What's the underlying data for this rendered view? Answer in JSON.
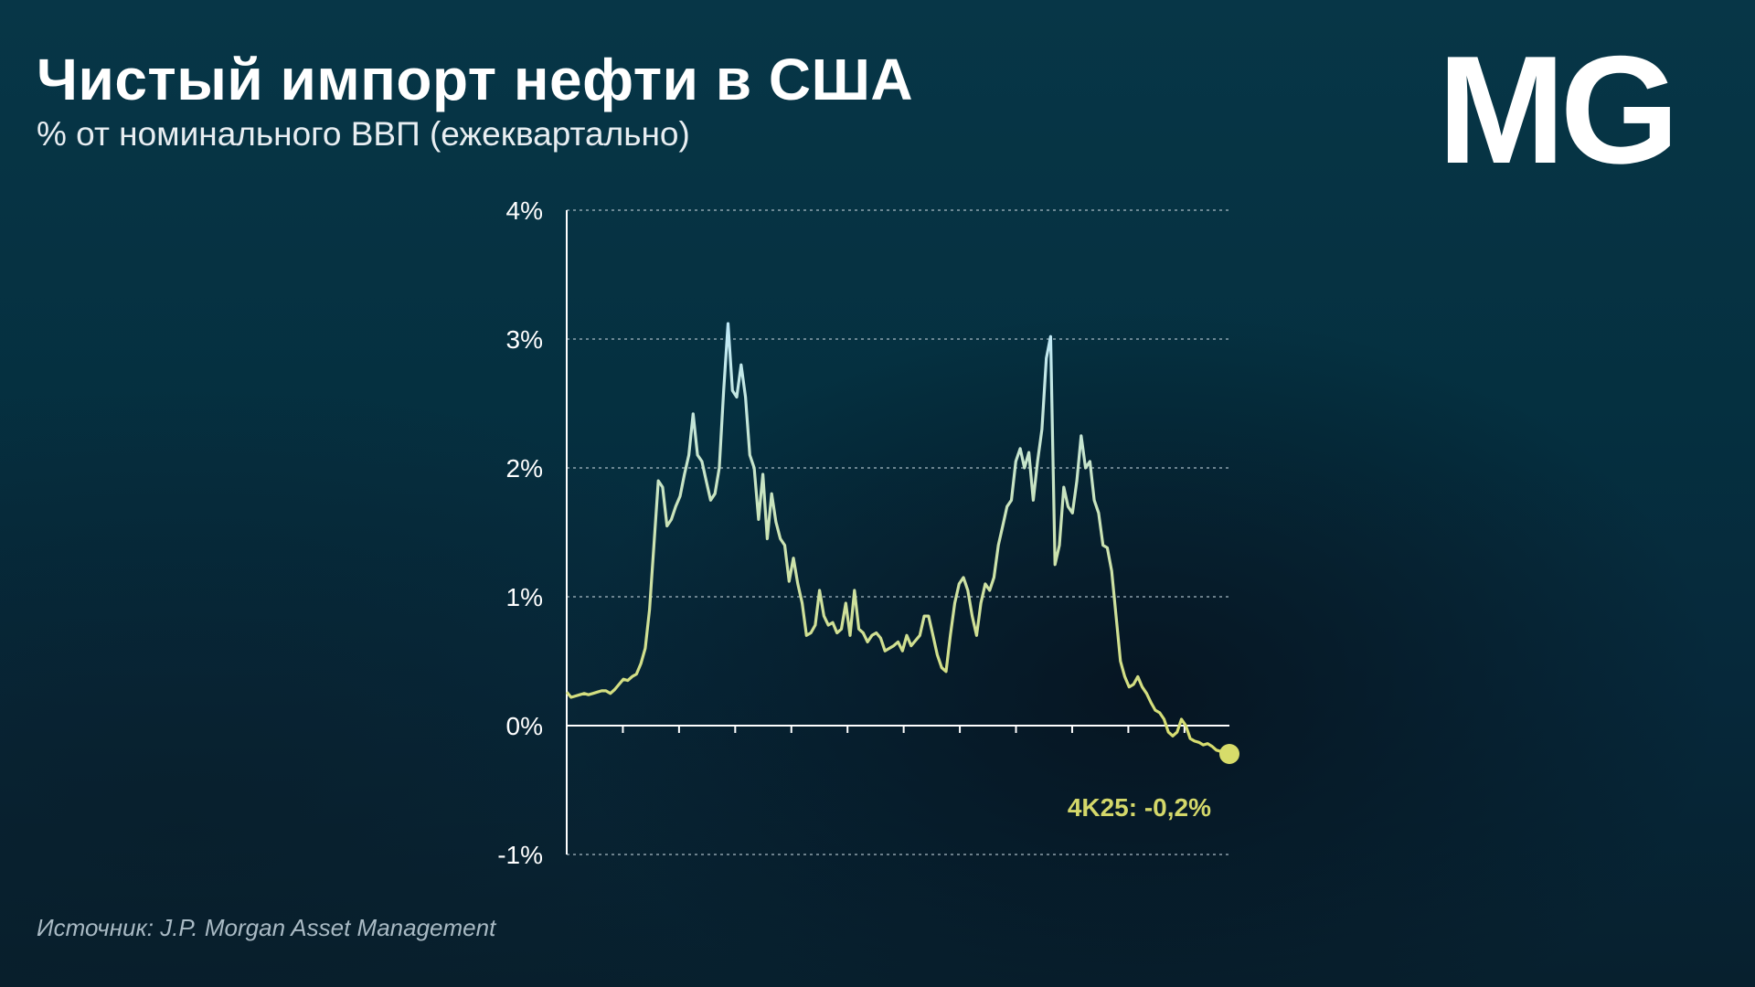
{
  "header": {
    "title": "Чистый импорт нефти в США",
    "subtitle": "% от номинального ВВП (ежеквартально)"
  },
  "logo": {
    "text": "MG"
  },
  "footer": {
    "source": "Источник: J.P. Morgan Asset Management"
  },
  "colors": {
    "line_start": "#d7dc6a",
    "line_peak": "#bfe9f7",
    "last_point": "#d7dc6a",
    "grid": "#a9bac4",
    "axis": "#ffffff"
  },
  "chart_data": {
    "type": "line",
    "title": "Чистый импорт нефти в США",
    "subtitle": "% от номинального ВВП (ежеквартально)",
    "xlabel": "",
    "ylabel": "",
    "ylim": [
      -1,
      4
    ],
    "y_ticks": [
      4,
      3,
      2,
      1,
      0,
      -1
    ],
    "y_tick_labels": [
      "4%",
      "3%",
      "2%",
      "1%",
      "0%",
      "-1%"
    ],
    "x_tick_count": 11,
    "grid": true,
    "legend": "none",
    "series": [
      {
        "values": [
          0.26,
          0.22,
          0.23,
          0.24,
          0.25,
          0.24,
          0.25,
          0.26,
          0.27,
          0.27,
          0.25,
          0.28,
          0.32,
          0.36,
          0.35,
          0.38,
          0.4,
          0.48,
          0.6,
          0.9,
          1.4,
          1.9,
          1.85,
          1.55,
          1.6,
          1.7,
          1.78,
          1.95,
          2.1,
          2.42,
          2.1,
          2.05,
          1.9,
          1.75,
          1.8,
          2.0,
          2.6,
          3.12,
          2.6,
          2.55,
          2.8,
          2.55,
          2.1,
          2.0,
          1.6,
          1.95,
          1.45,
          1.8,
          1.58,
          1.45,
          1.4,
          1.12,
          1.3,
          1.1,
          0.95,
          0.7,
          0.72,
          0.78,
          1.05,
          0.85,
          0.78,
          0.8,
          0.72,
          0.75,
          0.95,
          0.7,
          1.05,
          0.75,
          0.72,
          0.65,
          0.7,
          0.72,
          0.68,
          0.58,
          0.6,
          0.62,
          0.65,
          0.58,
          0.7,
          0.62,
          0.66,
          0.7,
          0.85,
          0.85,
          0.7,
          0.55,
          0.45,
          0.42,
          0.7,
          0.95,
          1.1,
          1.15,
          1.05,
          0.85,
          0.7,
          0.95,
          1.1,
          1.05,
          1.15,
          1.4,
          1.55,
          1.7,
          1.75,
          2.05,
          2.15,
          2.0,
          2.12,
          1.75,
          2.05,
          2.3,
          2.85,
          3.02,
          1.25,
          1.4,
          1.85,
          1.7,
          1.65,
          1.9,
          2.25,
          2.0,
          2.05,
          1.75,
          1.65,
          1.4,
          1.38,
          1.2,
          0.85,
          0.5,
          0.38,
          0.3,
          0.32,
          0.38,
          0.3,
          0.25,
          0.18,
          0.12,
          0.1,
          0.05,
          -0.05,
          -0.08,
          -0.05,
          0.05,
          0.0,
          -0.1,
          -0.12,
          -0.13,
          -0.15,
          -0.14,
          -0.16,
          -0.19,
          -0.2,
          -0.2,
          -0.22
        ]
      }
    ],
    "last_point": {
      "value": -0.22
    },
    "annotation": "4K25: -0,2%"
  }
}
